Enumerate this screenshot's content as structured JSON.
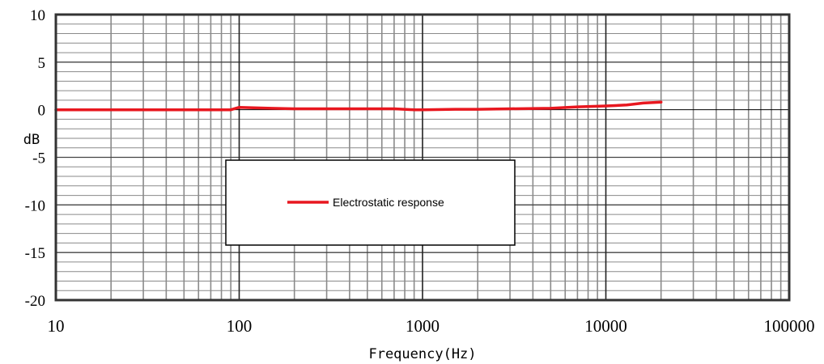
{
  "chart_data": {
    "type": "line",
    "title": "",
    "xlabel": "Frequency(Hz)",
    "ylabel": "dB",
    "x_scale": "log",
    "xlim": [
      10,
      100000
    ],
    "ylim": [
      -20,
      10
    ],
    "x_ticks": [
      "10",
      "100",
      "1000",
      "10000",
      "100000"
    ],
    "y_ticks": [
      "10",
      "5",
      "0",
      "-5",
      "-10",
      "-15",
      "-20"
    ],
    "grid": true,
    "legend_position": "center-left",
    "series": [
      {
        "name": "Electrostatic response",
        "color": "#e8171f",
        "points": [
          [
            10,
            0.0
          ],
          [
            20,
            0.0
          ],
          [
            50,
            0.0
          ],
          [
            90,
            0.0
          ],
          [
            100,
            0.25
          ],
          [
            150,
            0.15
          ],
          [
            200,
            0.1
          ],
          [
            300,
            0.1
          ],
          [
            500,
            0.1
          ],
          [
            700,
            0.1
          ],
          [
            900,
            0.0
          ],
          [
            1000,
            0.0
          ],
          [
            1500,
            0.05
          ],
          [
            2000,
            0.05
          ],
          [
            3000,
            0.1
          ],
          [
            5000,
            0.15
          ],
          [
            7000,
            0.3
          ],
          [
            10000,
            0.4
          ],
          [
            13000,
            0.5
          ],
          [
            16000,
            0.7
          ],
          [
            20000,
            0.8
          ]
        ]
      }
    ]
  }
}
